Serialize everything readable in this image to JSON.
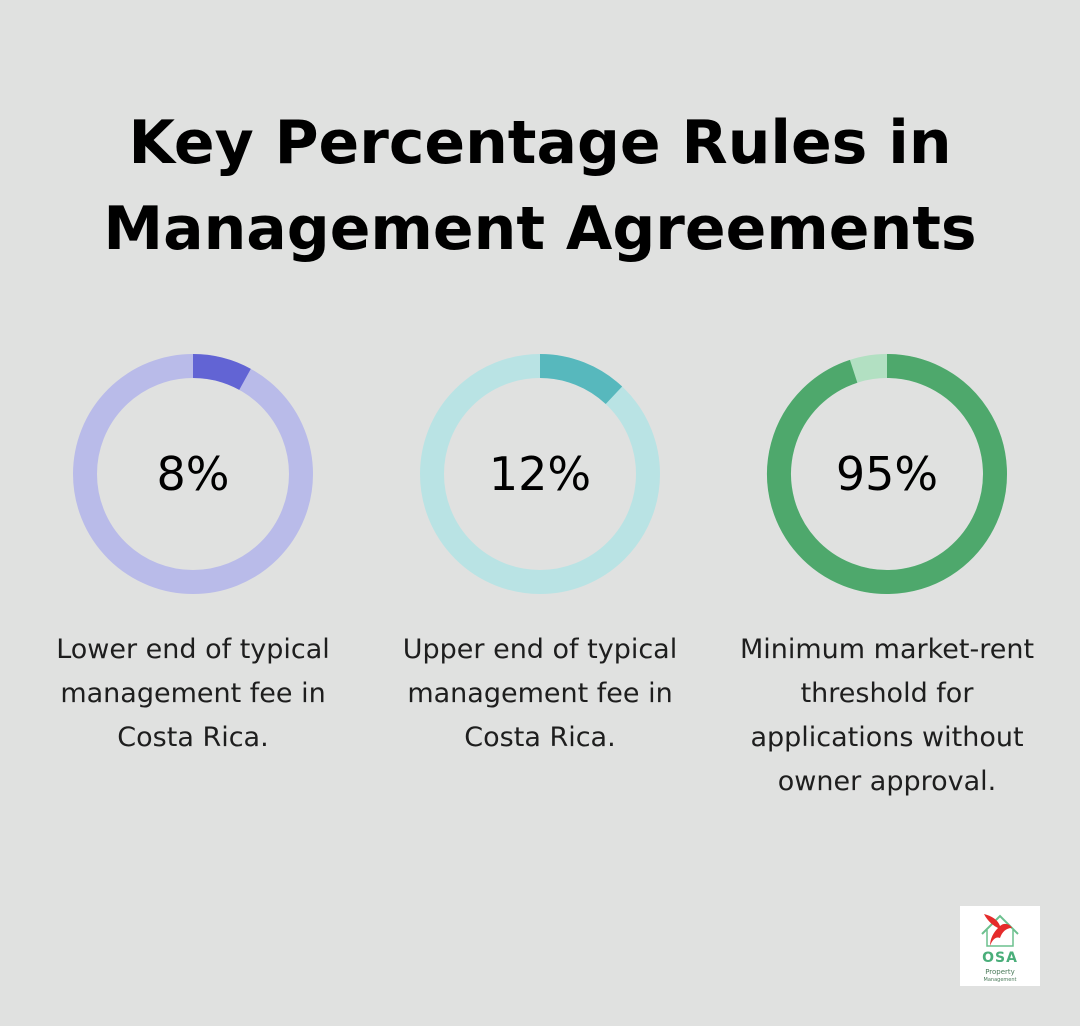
{
  "title": {
    "line1": "Key Percentage Rules in",
    "line2": "Management Agreements"
  },
  "chart_data": {
    "type": "donut",
    "items": [
      {
        "label": "8%",
        "value": 8,
        "description": "Lower end of typical management fee in Costa Rica.",
        "fill_color": "#6264d4",
        "track_color": "#b9bbe9"
      },
      {
        "label": "12%",
        "value": 12,
        "description": "Upper end of typical management fee in Costa Rica.",
        "fill_color": "#57b8bd",
        "track_color": "#b9e3e4"
      },
      {
        "label": "95%",
        "value": 95,
        "description": "Minimum market-rent threshold for applications without owner approval.",
        "fill_color": "#4ea86c",
        "track_color": "#b2e0c2"
      }
    ]
  },
  "logo": {
    "name": "OSA",
    "line2": "Property",
    "line3": "Management",
    "icon": "parrot-house-icon"
  }
}
